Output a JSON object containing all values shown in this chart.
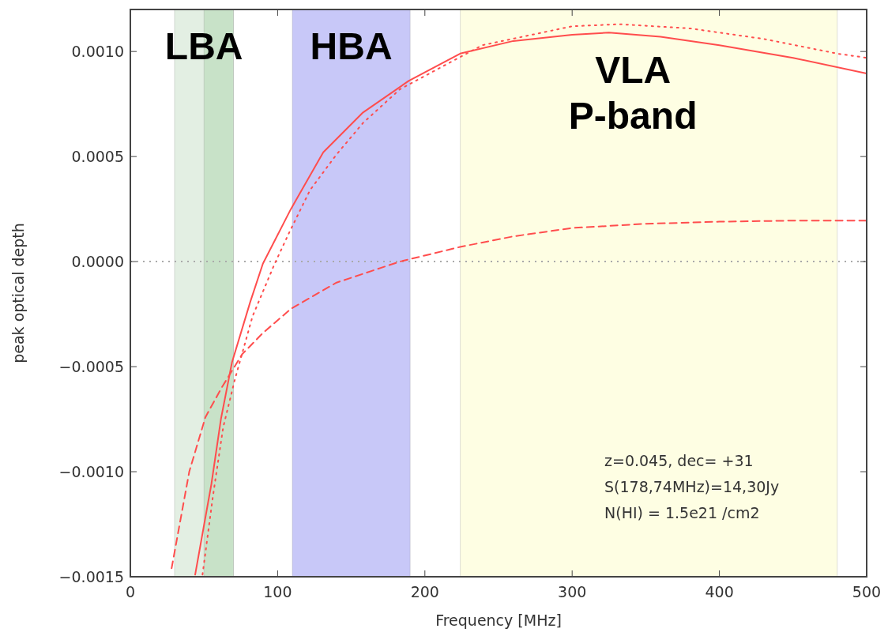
{
  "chart_data": {
    "type": "line",
    "xlabel": "Frequency [MHz]",
    "ylabel": "peak optical depth",
    "xlim": [
      0,
      500
    ],
    "xticks": [
      0,
      100,
      200,
      300,
      400,
      500
    ],
    "ylim": [
      -0.0015,
      0.0012
    ],
    "yticks": [
      {
        "value": -0.0015,
        "label": "−0.0015"
      },
      {
        "value": -0.001,
        "label": "−0.0010"
      },
      {
        "value": -0.0005,
        "label": "−0.0005"
      },
      {
        "value": 0,
        "label": "0.0000"
      },
      {
        "value": 0.0005,
        "label": "0.0005"
      },
      {
        "value": 0.001,
        "label": "0.0010"
      }
    ],
    "grid": false,
    "series": [
      {
        "color": "#ff4d4d",
        "line_style": "solid",
        "x": [
          44,
          55,
          61.5,
          69,
          81.5,
          90,
          109,
          131,
          158,
          189,
          224,
          260,
          300,
          325,
          360,
          400,
          450,
          500
        ],
        "values": [
          -0.00149,
          -0.00106,
          -0.00075,
          -0.00048,
          -0.00019,
          -1e-05,
          0.00025,
          0.00052,
          0.00071,
          0.00086,
          0.00099,
          0.00105,
          0.00108,
          0.00109,
          0.00107,
          0.00103,
          0.00097,
          0.000895
        ]
      },
      {
        "color": "#ff4d4d",
        "line_style": "dotted",
        "x": [
          49,
          56,
          63,
          71,
          83,
          98,
          108,
          122,
          140,
          158,
          183,
          239,
          300,
          332,
          380,
          430,
          480,
          500
        ],
        "values": [
          -0.00149,
          -0.00112,
          -0.00079,
          -0.00056,
          -0.00026,
          -1e-05,
          0.00014,
          0.00034,
          0.00051,
          0.00066,
          0.00082,
          0.00103,
          0.00112,
          0.00113,
          0.00111,
          0.00106,
          0.00099,
          0.00097
        ]
      },
      {
        "color": "#ff4d4d",
        "line_style": "dashed",
        "x": [
          28,
          40,
          51,
          62,
          76,
          90,
          109,
          140,
          183,
          224,
          260,
          300,
          350,
          400,
          450,
          500
        ],
        "values": [
          -0.00146,
          -0.001,
          -0.00074,
          -0.0006,
          -0.00044,
          -0.00034,
          -0.000225,
          -0.0001,
          0,
          7e-05,
          0.00012,
          0.00016,
          0.00018,
          0.00019,
          0.000195,
          0.000195
        ]
      }
    ],
    "bands": [
      {
        "axis": "x",
        "from": 30,
        "to": 70,
        "label": "LBA",
        "color": "#e3efe3"
      },
      {
        "axis": "x",
        "from": 50,
        "to": 70,
        "color": "#c8e2c8"
      },
      {
        "axis": "x",
        "from": 110,
        "to": 190,
        "label": "HBA",
        "color": "#c8c8f8"
      },
      {
        "axis": "x",
        "from": 224,
        "to": 480,
        "label": "VLA\nP-band",
        "color": "#fefee3"
      }
    ],
    "ref_lines": [
      {
        "axis": "y",
        "value": 0,
        "color": "#aaaaaa",
        "line_style": "dotted"
      }
    ],
    "annotations": [
      "z=0.045, dec= +31",
      "S(178,74MHz)=14,30Jy",
      "N(HI) = 1.5e21 /cm2"
    ]
  }
}
